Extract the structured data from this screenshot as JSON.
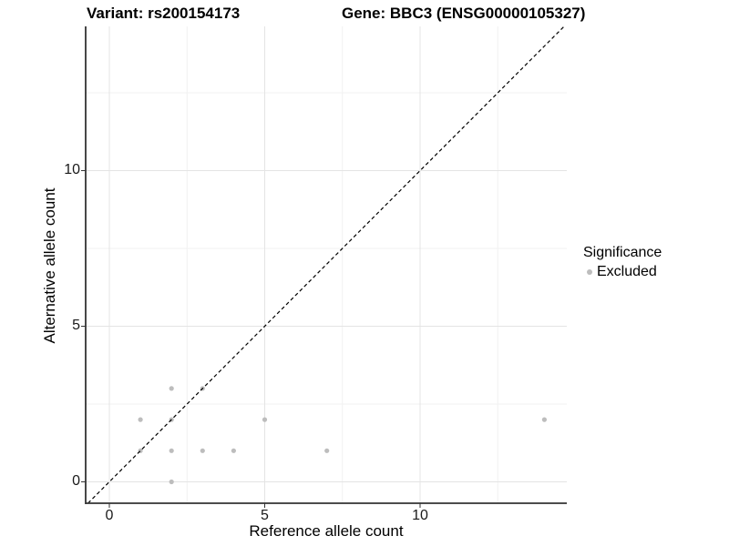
{
  "chart_data": {
    "type": "scatter",
    "titles": {
      "variant": "Variant: rs200154173",
      "gene": "Gene: BBC3 (ENSG00000105327)"
    },
    "xlabel": "Reference allele count",
    "ylabel": "Alternative allele count",
    "x_ticks": [
      0,
      5,
      10
    ],
    "y_ticks": [
      0,
      5,
      10
    ],
    "x_minor_gridlines": [
      2.5,
      7.5,
      12.5
    ],
    "y_minor_gridlines": [
      2.5,
      7.5,
      12.5
    ],
    "xlim": [
      -0.76,
      14.85
    ],
    "ylim": [
      -0.69,
      14.63
    ],
    "grid": {
      "major": true,
      "minor": true
    },
    "identity_line": {
      "style": "dashed",
      "equation": "y = x",
      "color": "#000000"
    },
    "series": [
      {
        "name": "Excluded",
        "color": "#bdbdbd",
        "points": [
          [
            1,
            1
          ],
          [
            1,
            2
          ],
          [
            2,
            0
          ],
          [
            2,
            1
          ],
          [
            2,
            2
          ],
          [
            2,
            3
          ],
          [
            3,
            1
          ],
          [
            3,
            3
          ],
          [
            4,
            1
          ],
          [
            5,
            2
          ],
          [
            7,
            1
          ],
          [
            14,
            2
          ]
        ]
      }
    ],
    "legend": {
      "title": "Significance",
      "position": "right",
      "items": [
        {
          "label": "Excluded",
          "color": "#bdbdbd"
        }
      ]
    }
  },
  "colors": {
    "background": "#ffffff",
    "grid_major": "#e4e4e4",
    "grid_minor": "#f1f1f1",
    "axis": "#333333",
    "tick": "#333333",
    "point": "#bdbdbd",
    "identity_line": "#000000"
  }
}
